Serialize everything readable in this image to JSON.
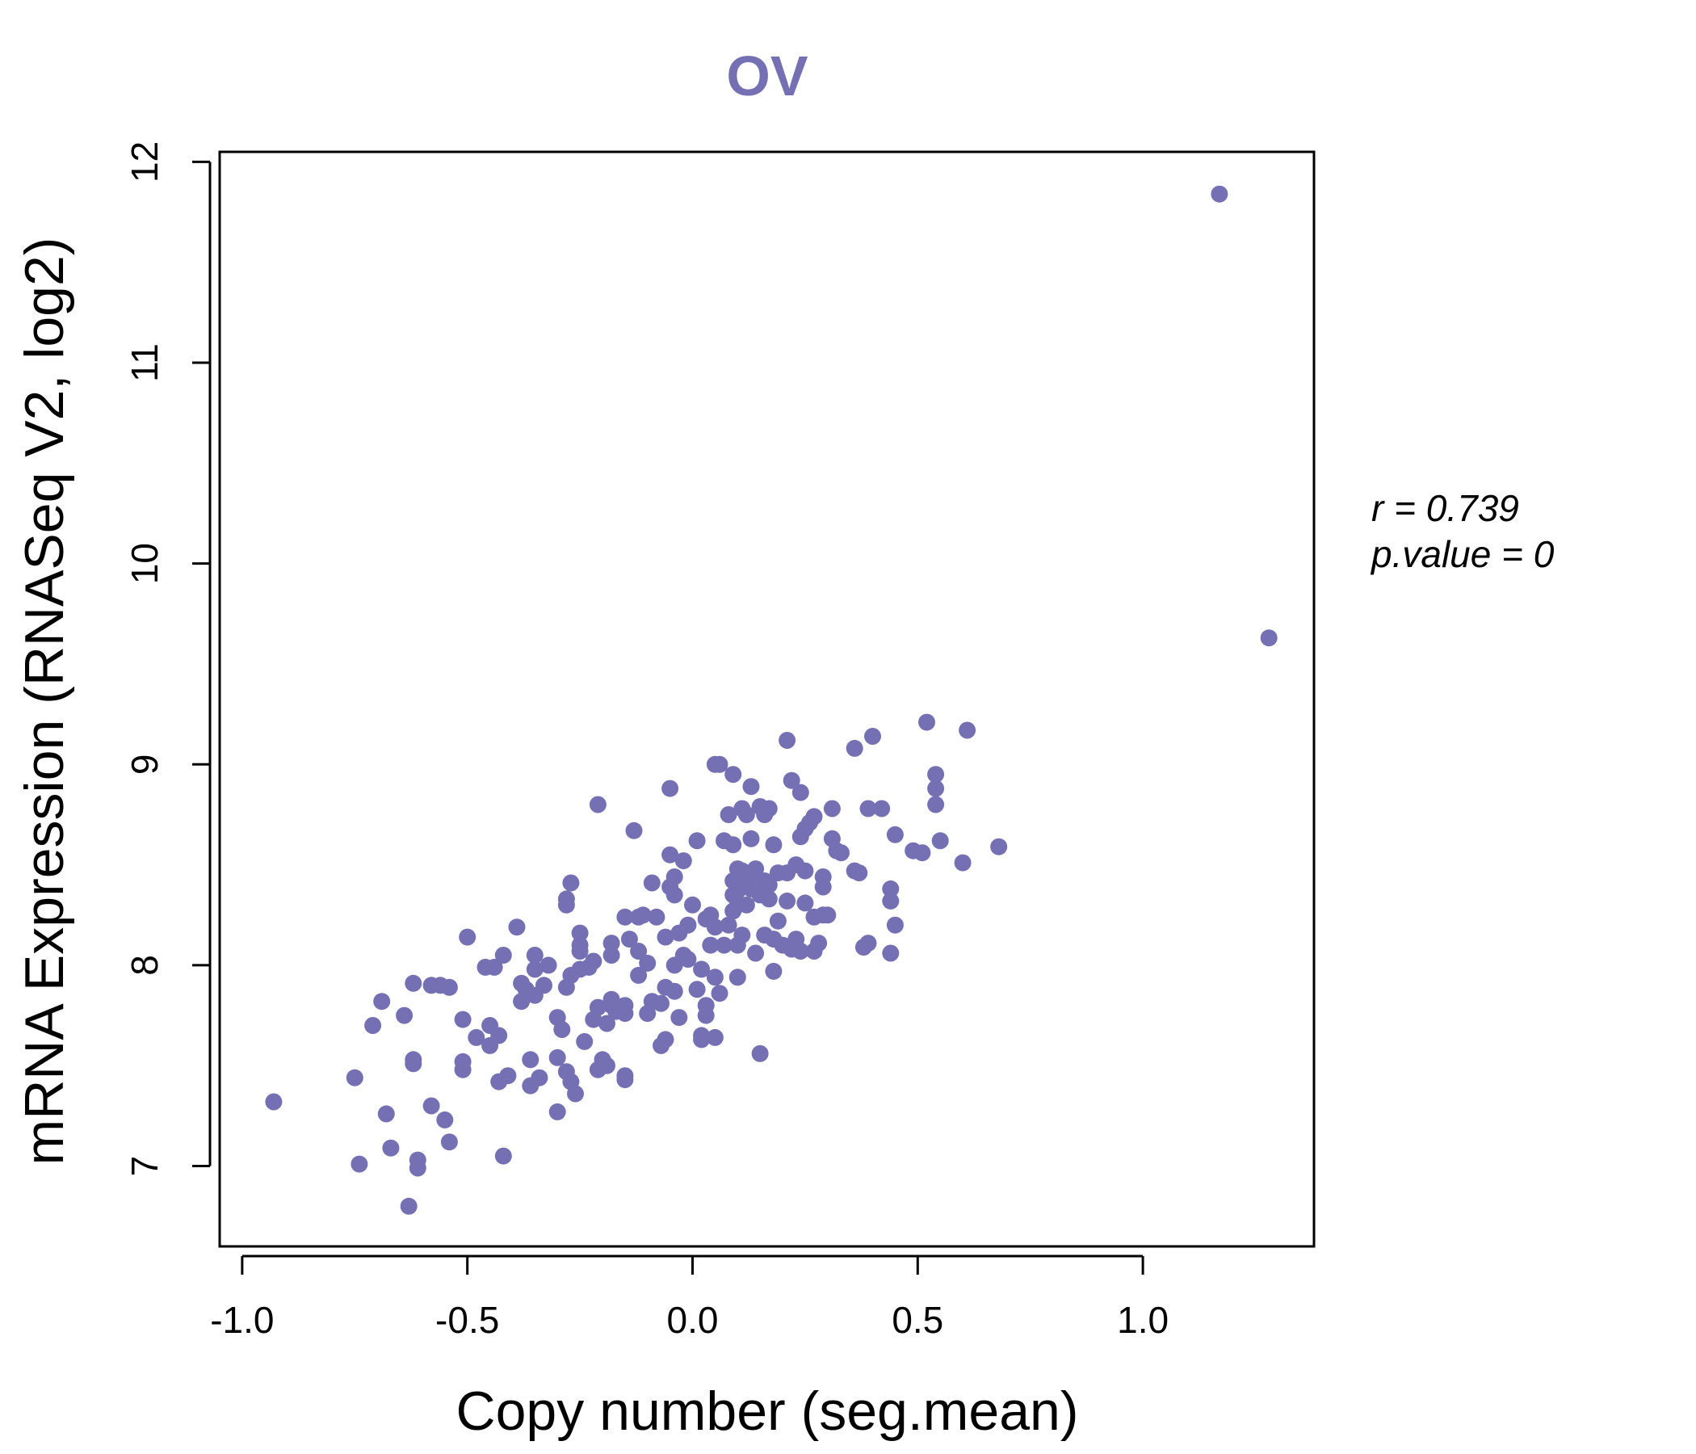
{
  "chart_data": {
    "type": "scatter",
    "title": "OV",
    "xlabel": "Copy number (seg.mean)",
    "ylabel": "mRNA Expression (RNASeq V2, log2)",
    "xlim": [
      -1.05,
      1.38
    ],
    "ylim": [
      6.6,
      12.05
    ],
    "xticks": [
      "-1.0",
      "-0.5",
      "0.0",
      "0.5",
      "1.0"
    ],
    "xtick_values": [
      -1.0,
      -0.5,
      0.0,
      0.5,
      1.0
    ],
    "yticks": [
      "7",
      "8",
      "9",
      "10",
      "11",
      "12"
    ],
    "ytick_values": [
      7,
      8,
      9,
      10,
      11,
      12
    ],
    "grid": false,
    "stats": {
      "r_label": "r = 0.739",
      "p_label": "p.value = 0"
    },
    "colors": {
      "points": "#7570b3",
      "title": "#7570b3",
      "axis": "#000000"
    },
    "points": [
      [
        -0.93,
        7.32
      ],
      [
        -0.75,
        7.44
      ],
      [
        -0.74,
        7.01
      ],
      [
        -0.71,
        7.7
      ],
      [
        -0.69,
        7.82
      ],
      [
        -0.68,
        7.26
      ],
      [
        -0.67,
        7.09
      ],
      [
        -0.64,
        7.75
      ],
      [
        -0.63,
        6.8
      ],
      [
        -0.62,
        7.53
      ],
      [
        -0.62,
        7.51
      ],
      [
        -0.62,
        7.91
      ],
      [
        -0.61,
        7.03
      ],
      [
        -0.61,
        6.99
      ],
      [
        -0.58,
        7.3
      ],
      [
        -0.58,
        7.9
      ],
      [
        -0.56,
        7.9
      ],
      [
        -0.55,
        7.23
      ],
      [
        -0.54,
        7.12
      ],
      [
        -0.54,
        7.89
      ],
      [
        -0.51,
        7.52
      ],
      [
        -0.51,
        7.48
      ],
      [
        -0.51,
        7.73
      ],
      [
        -0.5,
        8.14
      ],
      [
        -0.48,
        7.64
      ],
      [
        -0.46,
        7.99
      ],
      [
        -0.45,
        7.6
      ],
      [
        -0.45,
        7.7
      ],
      [
        -0.44,
        7.99
      ],
      [
        -0.43,
        7.42
      ],
      [
        -0.43,
        7.65
      ],
      [
        -0.42,
        7.05
      ],
      [
        -0.42,
        8.05
      ],
      [
        -0.41,
        7.45
      ],
      [
        -0.39,
        8.19
      ],
      [
        -0.38,
        7.91
      ],
      [
        -0.38,
        7.82
      ],
      [
        -0.37,
        7.88
      ],
      [
        -0.36,
        7.4
      ],
      [
        -0.36,
        7.53
      ],
      [
        -0.35,
        8.05
      ],
      [
        -0.35,
        7.98
      ],
      [
        -0.35,
        7.85
      ],
      [
        -0.34,
        7.44
      ],
      [
        -0.33,
        7.9
      ],
      [
        -0.32,
        8.0
      ],
      [
        -0.3,
        7.27
      ],
      [
        -0.3,
        7.54
      ],
      [
        -0.3,
        7.74
      ],
      [
        -0.29,
        7.68
      ],
      [
        -0.28,
        7.47
      ],
      [
        -0.28,
        8.3
      ],
      [
        -0.28,
        8.33
      ],
      [
        -0.28,
        7.89
      ],
      [
        -0.27,
        8.41
      ],
      [
        -0.27,
        7.95
      ],
      [
        -0.27,
        7.42
      ],
      [
        -0.26,
        7.36
      ],
      [
        -0.25,
        8.16
      ],
      [
        -0.25,
        8.1
      ],
      [
        -0.25,
        8.07
      ],
      [
        -0.25,
        7.98
      ],
      [
        -0.24,
        7.62
      ],
      [
        -0.23,
        7.99
      ],
      [
        -0.22,
        7.73
      ],
      [
        -0.22,
        8.02
      ],
      [
        -0.21,
        7.48
      ],
      [
        -0.21,
        7.79
      ],
      [
        -0.21,
        8.8
      ],
      [
        -0.2,
        7.53
      ],
      [
        -0.19,
        7.71
      ],
      [
        -0.19,
        7.5
      ],
      [
        -0.18,
        7.8
      ],
      [
        -0.18,
        7.83
      ],
      [
        -0.18,
        8.05
      ],
      [
        -0.18,
        8.11
      ],
      [
        -0.17,
        7.77
      ],
      [
        -0.15,
        7.43
      ],
      [
        -0.15,
        7.45
      ],
      [
        -0.15,
        7.8
      ],
      [
        -0.15,
        7.76
      ],
      [
        -0.15,
        8.24
      ],
      [
        -0.14,
        8.13
      ],
      [
        -0.13,
        8.67
      ],
      [
        -0.12,
        8.24
      ],
      [
        -0.12,
        7.95
      ],
      [
        -0.12,
        8.07
      ],
      [
        -0.11,
        8.25
      ],
      [
        -0.1,
        8.01
      ],
      [
        -0.1,
        7.76
      ],
      [
        -0.09,
        7.82
      ],
      [
        -0.09,
        8.41
      ],
      [
        -0.08,
        8.24
      ],
      [
        -0.07,
        7.6
      ],
      [
        -0.07,
        7.81
      ],
      [
        -0.06,
        7.63
      ],
      [
        -0.06,
        8.14
      ],
      [
        -0.06,
        7.89
      ],
      [
        -0.05,
        8.88
      ],
      [
        -0.05,
        8.55
      ],
      [
        -0.05,
        8.39
      ],
      [
        -0.04,
        8.35
      ],
      [
        -0.04,
        8.44
      ],
      [
        -0.04,
        8.0
      ],
      [
        -0.04,
        7.87
      ],
      [
        -0.03,
        7.74
      ],
      [
        -0.03,
        8.16
      ],
      [
        -0.02,
        8.52
      ],
      [
        -0.02,
        8.05
      ],
      [
        -0.01,
        8.03
      ],
      [
        -0.01,
        8.2
      ],
      [
        0.0,
        8.3
      ],
      [
        0.01,
        8.62
      ],
      [
        0.01,
        7.88
      ],
      [
        0.02,
        7.65
      ],
      [
        0.02,
        7.63
      ],
      [
        0.02,
        7.98
      ],
      [
        0.03,
        8.23
      ],
      [
        0.03,
        7.8
      ],
      [
        0.03,
        7.75
      ],
      [
        0.04,
        8.1
      ],
      [
        0.04,
        8.25
      ],
      [
        0.05,
        9.0
      ],
      [
        0.05,
        8.19
      ],
      [
        0.05,
        7.64
      ],
      [
        0.05,
        7.94
      ],
      [
        0.06,
        9.0
      ],
      [
        0.06,
        7.86
      ],
      [
        0.07,
        8.62
      ],
      [
        0.07,
        8.1
      ],
      [
        0.08,
        8.75
      ],
      [
        0.08,
        8.2
      ],
      [
        0.09,
        8.27
      ],
      [
        0.09,
        8.35
      ],
      [
        0.09,
        8.42
      ],
      [
        0.09,
        8.6
      ],
      [
        0.09,
        8.95
      ],
      [
        0.1,
        8.1
      ],
      [
        0.1,
        8.3
      ],
      [
        0.1,
        8.37
      ],
      [
        0.1,
        7.94
      ],
      [
        0.1,
        8.48
      ],
      [
        0.11,
        8.78
      ],
      [
        0.11,
        8.47
      ],
      [
        0.11,
        8.42
      ],
      [
        0.11,
        8.15
      ],
      [
        0.12,
        8.75
      ],
      [
        0.12,
        8.3
      ],
      [
        0.12,
        8.4
      ],
      [
        0.13,
        8.45
      ],
      [
        0.13,
        8.63
      ],
      [
        0.13,
        8.89
      ],
      [
        0.13,
        8.38
      ],
      [
        0.14,
        8.06
      ],
      [
        0.14,
        8.48
      ],
      [
        0.15,
        8.79
      ],
      [
        0.15,
        7.56
      ],
      [
        0.15,
        8.35
      ],
      [
        0.16,
        8.42
      ],
      [
        0.16,
        8.75
      ],
      [
        0.16,
        8.15
      ],
      [
        0.17,
        8.78
      ],
      [
        0.17,
        8.4
      ],
      [
        0.17,
        8.33
      ],
      [
        0.18,
        8.6
      ],
      [
        0.18,
        7.97
      ],
      [
        0.18,
        8.13
      ],
      [
        0.19,
        8.22
      ],
      [
        0.19,
        8.46
      ],
      [
        0.2,
        8.1
      ],
      [
        0.21,
        9.12
      ],
      [
        0.21,
        8.46
      ],
      [
        0.21,
        8.32
      ],
      [
        0.22,
        8.08
      ],
      [
        0.22,
        8.92
      ],
      [
        0.23,
        8.5
      ],
      [
        0.23,
        8.13
      ],
      [
        0.24,
        8.86
      ],
      [
        0.24,
        8.64
      ],
      [
        0.24,
        8.07
      ],
      [
        0.25,
        8.68
      ],
      [
        0.25,
        8.47
      ],
      [
        0.25,
        8.31
      ],
      [
        0.26,
        8.71
      ],
      [
        0.27,
        8.74
      ],
      [
        0.27,
        8.24
      ],
      [
        0.27,
        8.07
      ],
      [
        0.28,
        8.11
      ],
      [
        0.29,
        8.44
      ],
      [
        0.29,
        8.39
      ],
      [
        0.29,
        8.25
      ],
      [
        0.3,
        8.25
      ],
      [
        0.31,
        8.78
      ],
      [
        0.31,
        8.63
      ],
      [
        0.32,
        8.57
      ],
      [
        0.33,
        8.56
      ],
      [
        0.36,
        8.47
      ],
      [
        0.36,
        9.08
      ],
      [
        0.37,
        8.46
      ],
      [
        0.38,
        8.09
      ],
      [
        0.39,
        8.11
      ],
      [
        0.39,
        8.78
      ],
      [
        0.4,
        9.14
      ],
      [
        0.42,
        8.78
      ],
      [
        0.44,
        8.06
      ],
      [
        0.44,
        8.38
      ],
      [
        0.44,
        8.32
      ],
      [
        0.45,
        8.2
      ],
      [
        0.45,
        8.65
      ],
      [
        0.49,
        8.57
      ],
      [
        0.51,
        8.56
      ],
      [
        0.52,
        9.21
      ],
      [
        0.54,
        8.88
      ],
      [
        0.54,
        8.95
      ],
      [
        0.54,
        8.8
      ],
      [
        0.55,
        8.62
      ],
      [
        0.6,
        8.51
      ],
      [
        0.61,
        9.17
      ],
      [
        0.68,
        8.59
      ],
      [
        1.17,
        11.84
      ],
      [
        1.28,
        9.63
      ]
    ]
  }
}
